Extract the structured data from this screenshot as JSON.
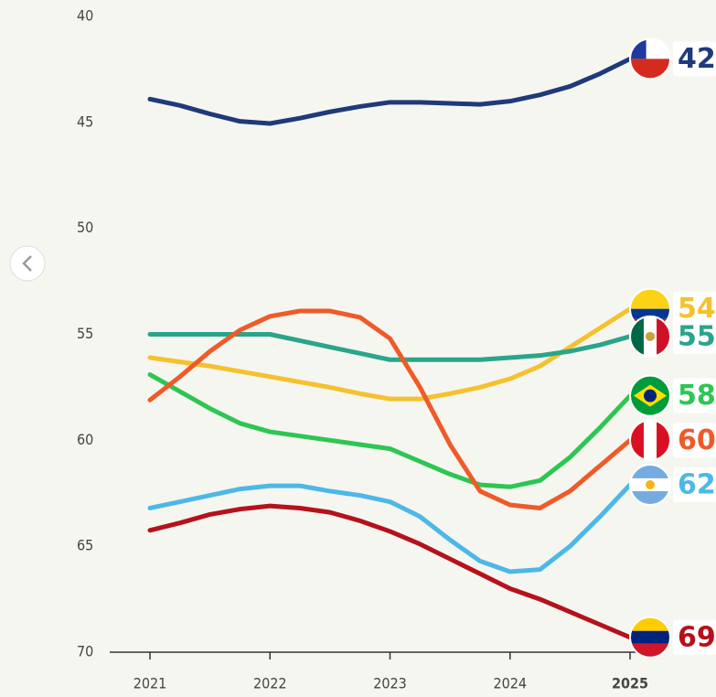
{
  "chart_data": {
    "type": "line",
    "ylim": [
      40,
      70
    ],
    "yticks": [
      40,
      45,
      50,
      55,
      60,
      65,
      70
    ],
    "y_inverted": true,
    "xlim": [
      2021,
      2025
    ],
    "xticks": [
      2021,
      2022,
      2023,
      2024,
      2025
    ],
    "xtick_bold": [
      2025
    ],
    "x": [
      2021,
      2021.25,
      2021.5,
      2021.75,
      2022,
      2022.25,
      2022.5,
      2022.75,
      2023,
      2023.25,
      2023.5,
      2023.75,
      2024,
      2024.25,
      2024.5,
      2024.75,
      2025
    ],
    "series": [
      {
        "color": "#1f3a7a",
        "end_label": "42",
        "values": [
          43.9,
          44.2,
          44.6,
          44.95,
          45.05,
          44.8,
          44.5,
          44.25,
          44.05,
          44.05,
          44.1,
          44.15,
          44.0,
          43.7,
          43.3,
          42.7,
          42.0
        ]
      },
      {
        "color": "#f5c12e",
        "end_label": "54",
        "values": [
          56.1,
          56.3,
          56.5,
          56.75,
          57.0,
          57.25,
          57.5,
          57.8,
          58.05,
          58.05,
          57.8,
          57.5,
          57.1,
          56.5,
          55.6,
          54.7,
          53.8
        ]
      },
      {
        "color": "#2aa58a",
        "end_label": "55",
        "values": [
          55.0,
          55.0,
          55.0,
          55.0,
          55.0,
          55.3,
          55.6,
          55.9,
          56.2,
          56.2,
          56.2,
          56.2,
          56.1,
          56.0,
          55.8,
          55.5,
          55.1
        ]
      },
      {
        "color": "#2dc653",
        "end_label": "58",
        "values": [
          56.9,
          57.7,
          58.5,
          59.2,
          59.6,
          59.8,
          60.0,
          60.2,
          60.4,
          61.0,
          61.6,
          62.1,
          62.2,
          61.9,
          60.8,
          59.4,
          57.9
        ]
      },
      {
        "color": "#f05a28",
        "end_label": "60",
        "values": [
          58.1,
          57.0,
          55.8,
          54.8,
          54.15,
          53.9,
          53.9,
          54.2,
          55.2,
          57.5,
          60.2,
          62.4,
          63.05,
          63.2,
          62.4,
          61.2,
          60.0
        ]
      },
      {
        "color": "#4cb8e8",
        "end_label": "62",
        "values": [
          63.2,
          62.9,
          62.6,
          62.3,
          62.15,
          62.15,
          62.4,
          62.6,
          62.9,
          63.6,
          64.7,
          65.7,
          66.2,
          66.1,
          65.0,
          63.6,
          62.1
        ]
      },
      {
        "color": "#b5121b",
        "end_label": "69",
        "values": [
          64.25,
          63.9,
          63.5,
          63.25,
          63.1,
          63.2,
          63.4,
          63.8,
          64.3,
          64.9,
          65.6,
          66.3,
          67.0,
          67.5,
          68.1,
          68.7,
          69.3
        ]
      }
    ]
  }
}
